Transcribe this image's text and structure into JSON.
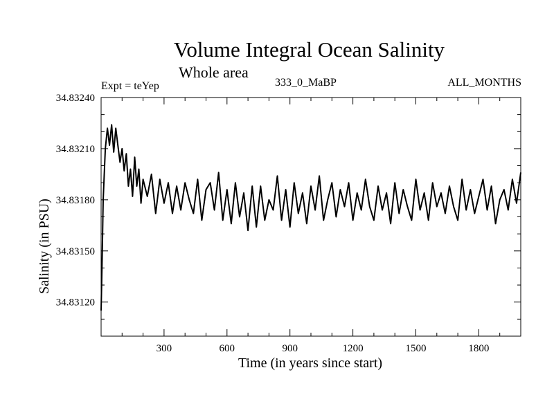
{
  "chart_data": {
    "type": "line",
    "title": "Volume Integral Ocean Salinity",
    "subtitle": "Whole area",
    "left_label": "Expt = teYep",
    "center_label": "333_0_MaBP",
    "right_label": "ALL_MONTHS",
    "xlabel": "Time (in years since start)",
    "ylabel": "Salinity (in PSU)",
    "xlim": [
      0,
      2000
    ],
    "ylim": [
      34.831,
      34.8324
    ],
    "xticks": [
      300,
      600,
      900,
      1200,
      1500,
      1800
    ],
    "xtick_labels": [
      "300",
      "600",
      "900",
      "1200",
      "1500",
      "1800"
    ],
    "yticks": [
      34.8312,
      34.8315,
      34.8318,
      34.8321,
      34.8324
    ],
    "ytick_labels": [
      "34.83120",
      "34.83150",
      "34.83180",
      "34.83210",
      "34.83240"
    ],
    "grid": false,
    "series": [
      {
        "name": "Salinity",
        "x": [
          0,
          5,
          10,
          20,
          30,
          40,
          50,
          60,
          70,
          80,
          90,
          100,
          110,
          120,
          130,
          140,
          150,
          160,
          170,
          180,
          190,
          200,
          220,
          240,
          260,
          280,
          300,
          320,
          340,
          360,
          380,
          400,
          420,
          440,
          460,
          480,
          500,
          520,
          540,
          560,
          580,
          600,
          620,
          640,
          660,
          680,
          700,
          720,
          740,
          760,
          780,
          800,
          820,
          840,
          860,
          880,
          900,
          920,
          940,
          960,
          980,
          1000,
          1020,
          1040,
          1060,
          1080,
          1100,
          1120,
          1140,
          1160,
          1180,
          1200,
          1220,
          1240,
          1260,
          1280,
          1300,
          1320,
          1340,
          1360,
          1380,
          1400,
          1420,
          1440,
          1460,
          1480,
          1500,
          1520,
          1540,
          1560,
          1580,
          1600,
          1620,
          1640,
          1660,
          1680,
          1700,
          1720,
          1740,
          1760,
          1780,
          1800,
          1820,
          1840,
          1860,
          1880,
          1900,
          1920,
          1940,
          1960,
          1980,
          2000
        ],
        "values": [
          34.83115,
          34.83145,
          34.8318,
          34.8321,
          34.83222,
          34.83212,
          34.83224,
          34.83208,
          34.83222,
          34.83212,
          34.83202,
          34.8321,
          34.83197,
          34.83207,
          34.83188,
          34.83198,
          34.83182,
          34.83205,
          34.83188,
          34.83198,
          34.83178,
          34.83192,
          34.83182,
          34.83195,
          34.83172,
          34.83192,
          34.83178,
          34.8319,
          34.83172,
          34.83188,
          34.83174,
          34.8319,
          34.8318,
          34.83172,
          34.83192,
          34.83168,
          34.83186,
          34.8319,
          34.83174,
          34.83196,
          34.83168,
          34.83186,
          34.83166,
          34.8319,
          34.8317,
          34.83184,
          34.83162,
          34.83188,
          34.83164,
          34.83188,
          34.83168,
          34.8318,
          34.83174,
          34.83194,
          34.83168,
          34.83186,
          34.83164,
          34.8319,
          34.83172,
          34.83184,
          34.83166,
          34.83188,
          34.83174,
          34.83194,
          34.83168,
          34.8318,
          34.8319,
          34.8317,
          34.83186,
          34.83176,
          34.8319,
          34.83168,
          34.83184,
          34.83174,
          34.83192,
          34.83176,
          34.83168,
          34.83188,
          34.83174,
          34.83184,
          34.83166,
          34.8319,
          34.83172,
          34.83186,
          34.83176,
          34.83168,
          34.83192,
          34.83174,
          34.83184,
          34.83168,
          34.8319,
          34.83176,
          34.83184,
          34.83172,
          34.83188,
          34.83176,
          34.83168,
          34.83192,
          34.83174,
          34.83186,
          34.83172,
          34.83182,
          34.83192,
          34.83174,
          34.83188,
          34.83166,
          34.8318,
          34.83186,
          34.83174,
          34.83192,
          34.83178,
          34.83196
        ]
      }
    ]
  }
}
